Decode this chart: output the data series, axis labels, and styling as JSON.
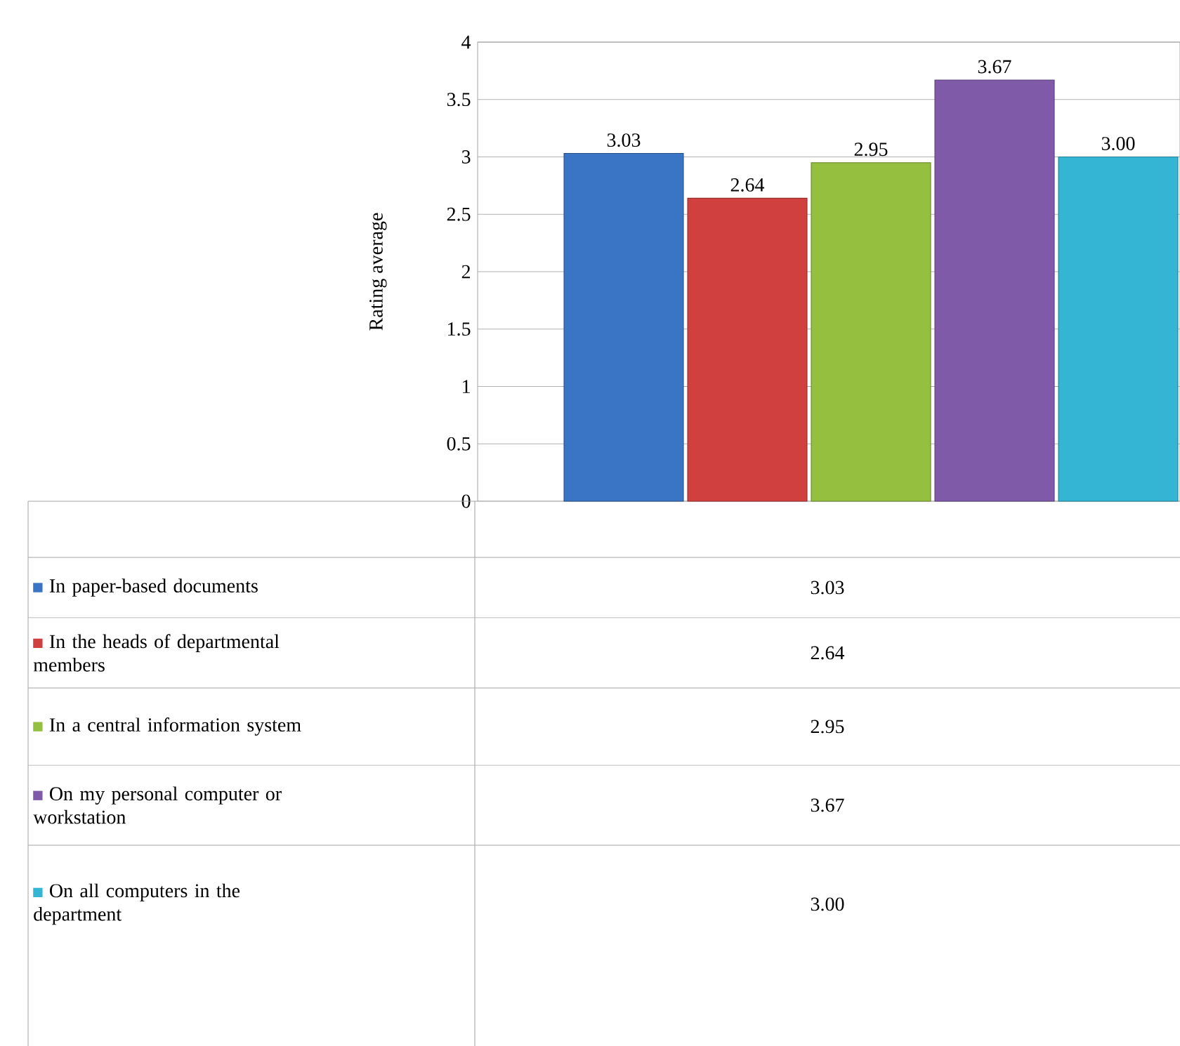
{
  "chart_data": {
    "type": "bar",
    "ylabel": "Rating average",
    "categories": [
      null
    ],
    "series": [
      {
        "name": "In paper-based documents",
        "color": "#3a74c4",
        "values": [
          3.03
        ],
        "value_labels": [
          "3.03"
        ]
      },
      {
        "name": "In the heads of departmental members",
        "color": "#d0403e",
        "values": [
          2.64
        ],
        "value_labels": [
          "2.64"
        ]
      },
      {
        "name": "In a central information system",
        "color": "#94bf3f",
        "values": [
          2.95
        ],
        "value_labels": [
          "2.95"
        ]
      },
      {
        "name": "On my personal computer or workstation",
        "color": "#7f5aa8",
        "values": [
          3.67
        ],
        "value_labels": [
          "3.67"
        ]
      },
      {
        "name": "On all computers in the department",
        "color": "#35b5d4",
        "values": [
          3.0
        ],
        "value_labels": [
          "3.00"
        ]
      }
    ],
    "ylim": [
      0,
      4
    ],
    "yticks": [
      0,
      0.5,
      1,
      1.5,
      2,
      2.5,
      3,
      3.5,
      4
    ],
    "grid": "y",
    "legend": "bottom"
  }
}
